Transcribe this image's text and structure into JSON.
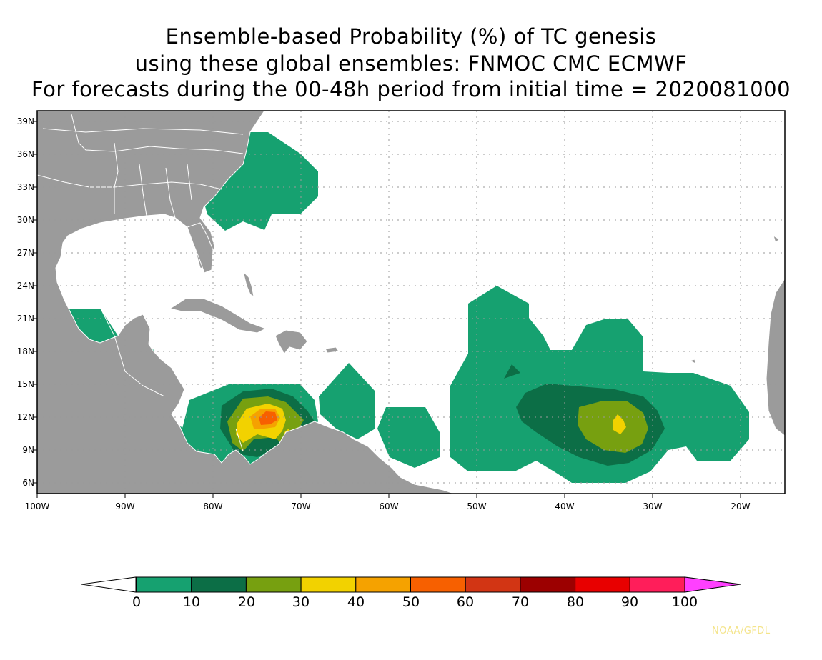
{
  "title": {
    "line1": "Ensemble-based Probability (%) of TC genesis",
    "line2": "using these global ensembles:   FNMOC CMC ECMWF",
    "line3": "For forecasts during the 00-48h period from initial time = 2020081000"
  },
  "map": {
    "lat_labels": [
      "39N",
      "36N",
      "33N",
      "30N",
      "27N",
      "24N",
      "21N",
      "18N",
      "15N",
      "12N",
      "9N",
      "6N"
    ],
    "lon_labels": [
      "100W",
      "90W",
      "80W",
      "70W",
      "60W",
      "50W",
      "40W",
      "30W",
      "20W"
    ],
    "land_color": "#9b9b9b",
    "grid": "dotted"
  },
  "colorbar": {
    "labels": [
      "0",
      "10",
      "20",
      "30",
      "40",
      "50",
      "60",
      "70",
      "80",
      "90",
      "100"
    ],
    "colors": [
      "#16a170",
      "#0c6e46",
      "#77a010",
      "#f2d200",
      "#f5a200",
      "#f76000",
      "#d23514",
      "#9c0000",
      "#e80000",
      "#ff1e5a"
    ],
    "over_color": "#ff40ff",
    "under_color": "#ffffff"
  },
  "credit": "NOAA/GFDL"
}
